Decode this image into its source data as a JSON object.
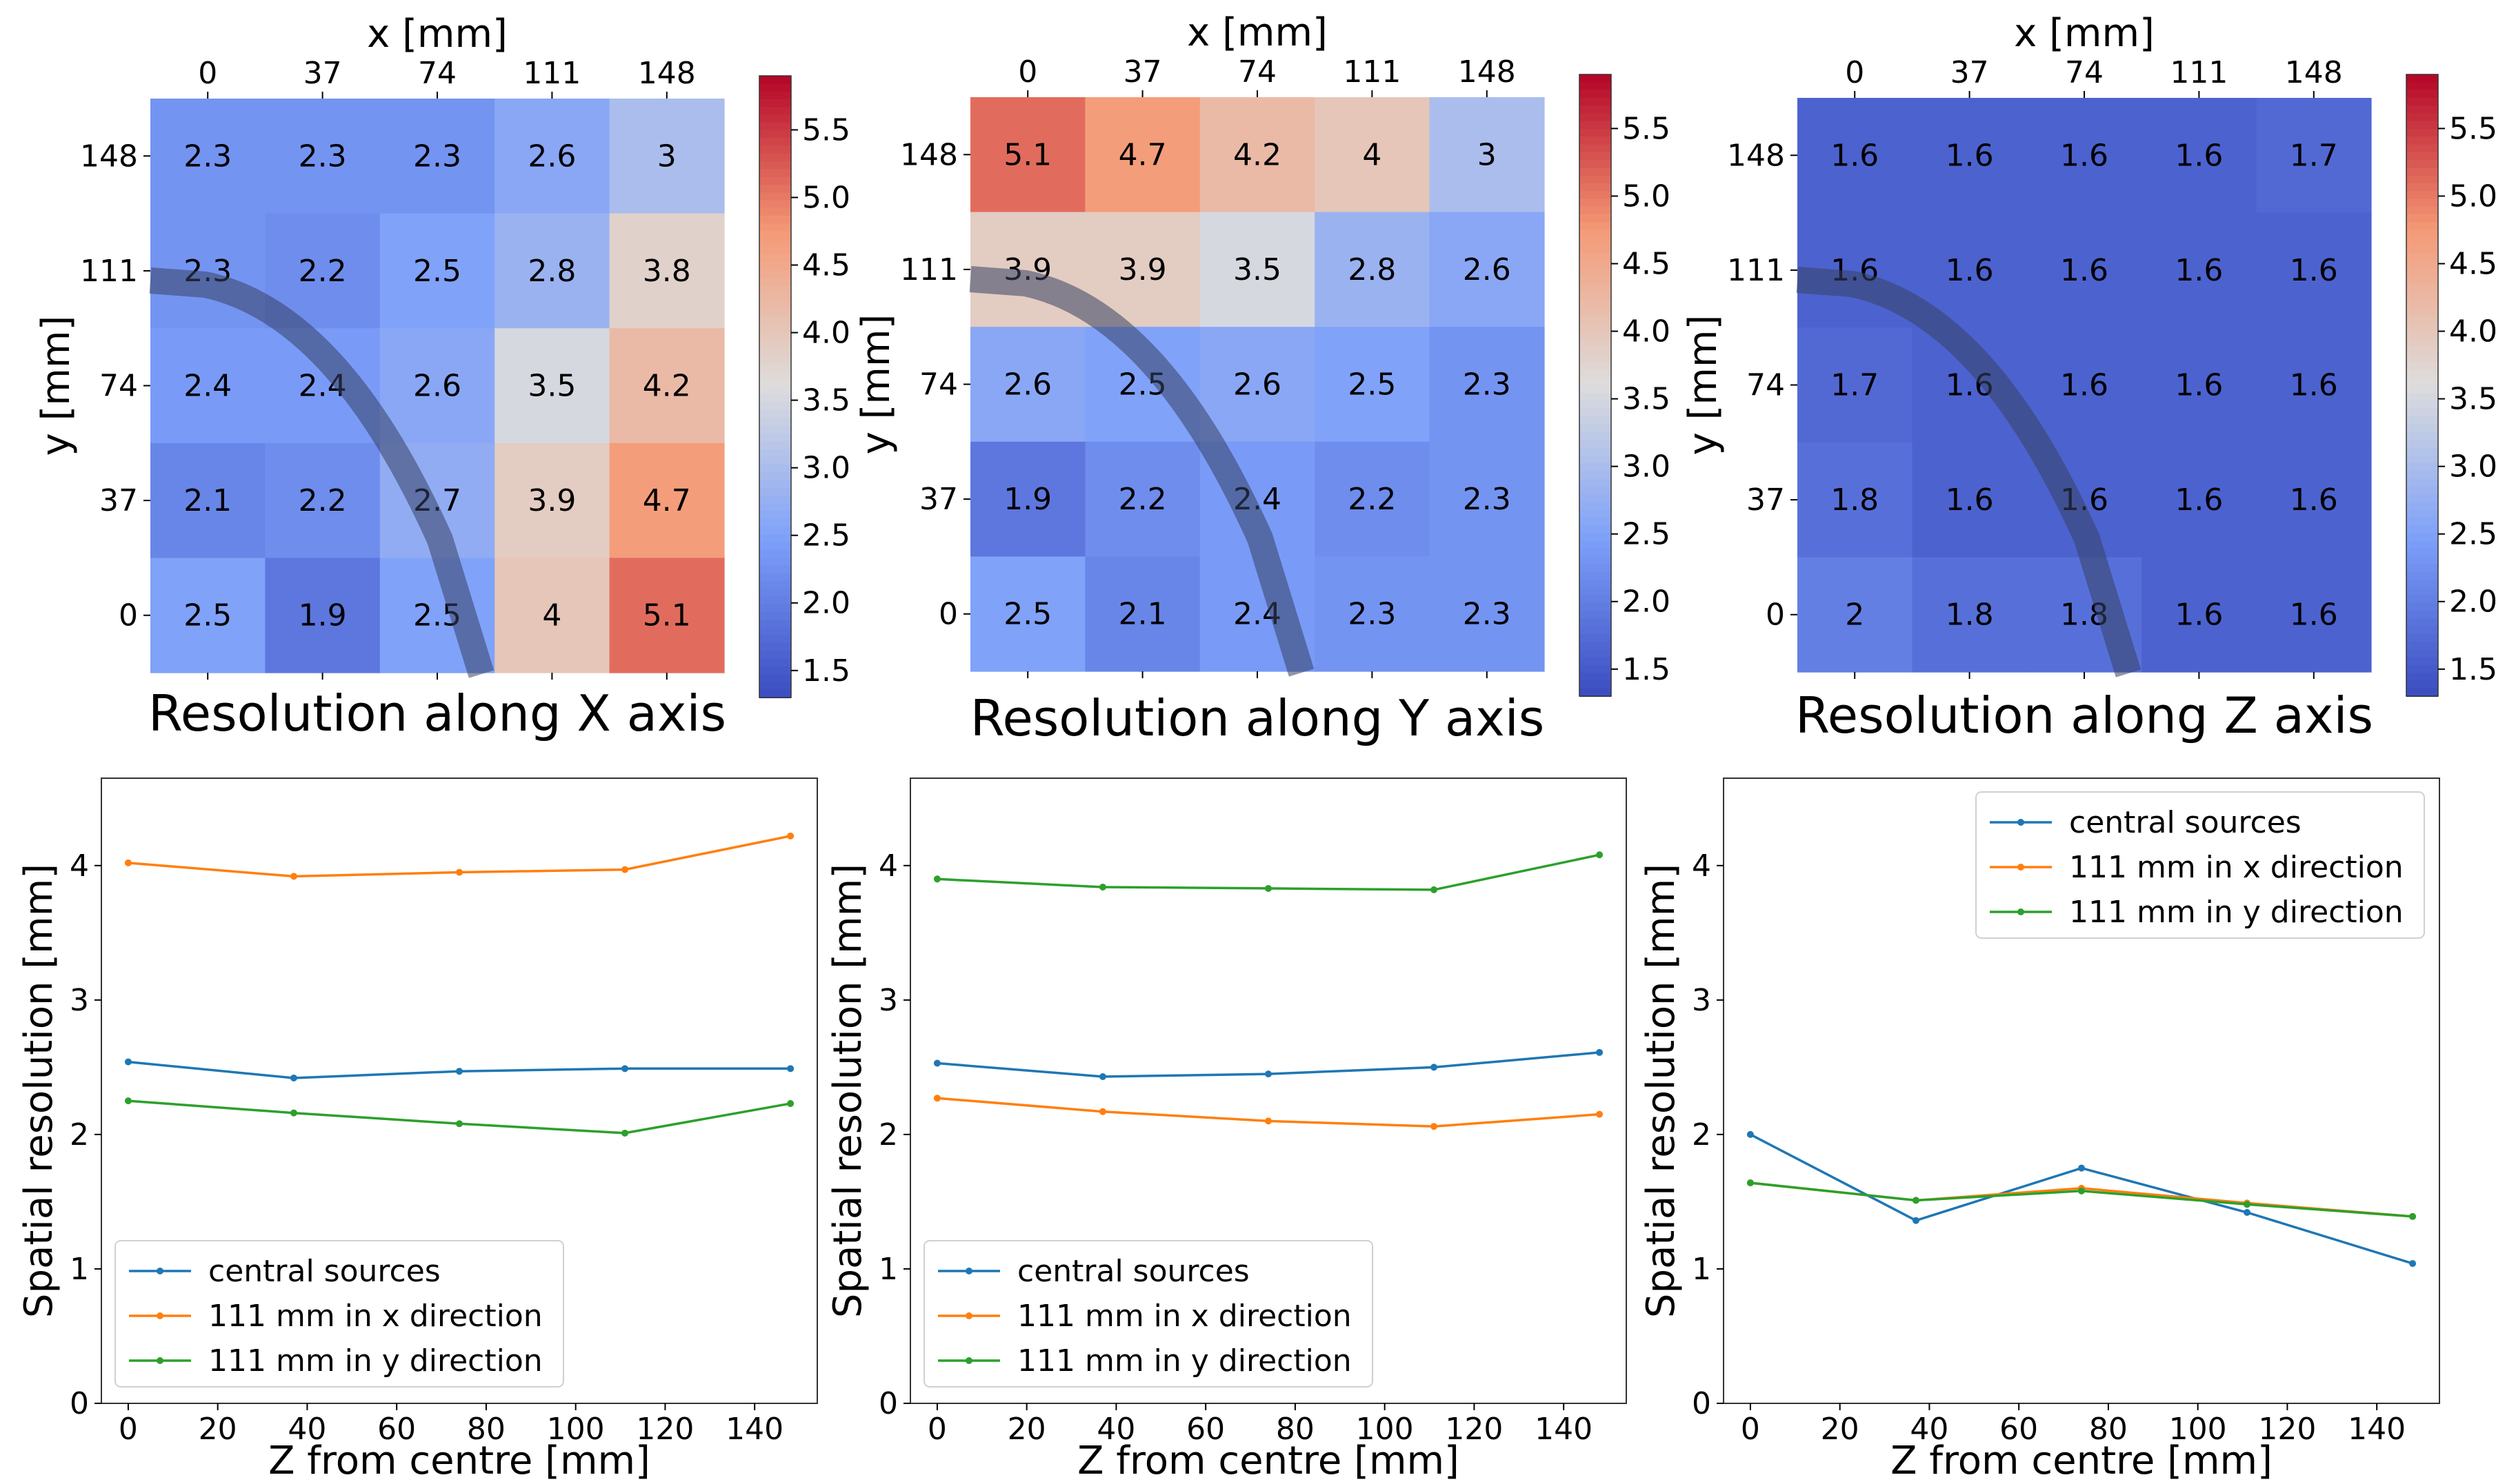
{
  "chart_data": [
    {
      "type": "heatmap",
      "title": "Resolution along X axis",
      "xlabel": "x [mm]",
      "ylabel": "y [mm]",
      "x_ticks": [
        "0",
        "37",
        "74",
        "111",
        "148"
      ],
      "y_ticks": [
        "148",
        "111",
        "74",
        "37",
        "0"
      ],
      "values": [
        [
          2.3,
          2.3,
          2.3,
          2.6,
          3.0
        ],
        [
          2.3,
          2.2,
          2.5,
          2.8,
          3.8
        ],
        [
          2.4,
          2.4,
          2.6,
          3.5,
          4.2
        ],
        [
          2.1,
          2.2,
          2.7,
          3.9,
          4.7
        ],
        [
          2.5,
          1.9,
          2.5,
          4.0,
          5.1
        ]
      ],
      "colorbar": {
        "min": 1.3,
        "max": 5.9,
        "ticks": [
          "1.5",
          "2.0",
          "2.5",
          "3.0",
          "3.5",
          "4.0",
          "4.5",
          "5.0",
          "5.5"
        ],
        "colormap": "coolwarm"
      }
    },
    {
      "type": "heatmap",
      "title": "Resolution along Y axis",
      "xlabel": "x [mm]",
      "ylabel": "y [mm]",
      "x_ticks": [
        "0",
        "37",
        "74",
        "111",
        "148"
      ],
      "y_ticks": [
        "148",
        "111",
        "74",
        "37",
        "0"
      ],
      "values": [
        [
          5.1,
          4.7,
          4.2,
          4.0,
          3.0
        ],
        [
          3.9,
          3.9,
          3.5,
          2.8,
          2.6
        ],
        [
          2.6,
          2.5,
          2.6,
          2.5,
          2.3
        ],
        [
          1.9,
          2.2,
          2.4,
          2.2,
          2.3
        ],
        [
          2.5,
          2.1,
          2.4,
          2.3,
          2.3
        ]
      ],
      "colorbar": {
        "min": 1.3,
        "max": 5.9,
        "ticks": [
          "1.5",
          "2.0",
          "2.5",
          "3.0",
          "3.5",
          "4.0",
          "4.5",
          "5.0",
          "5.5"
        ],
        "colormap": "coolwarm"
      }
    },
    {
      "type": "heatmap",
      "title": "Resolution along Z axis",
      "xlabel": "x [mm]",
      "ylabel": "y [mm]",
      "x_ticks": [
        "0",
        "37",
        "74",
        "111",
        "148"
      ],
      "y_ticks": [
        "148",
        "111",
        "74",
        "37",
        "0"
      ],
      "values": [
        [
          1.6,
          1.6,
          1.6,
          1.6,
          1.7
        ],
        [
          1.6,
          1.6,
          1.6,
          1.6,
          1.6
        ],
        [
          1.7,
          1.6,
          1.6,
          1.6,
          1.6
        ],
        [
          1.8,
          1.6,
          1.6,
          1.6,
          1.6
        ],
        [
          2.0,
          1.8,
          1.8,
          1.6,
          1.6
        ]
      ],
      "colorbar": {
        "min": 1.3,
        "max": 5.9,
        "ticks": [
          "1.5",
          "2.0",
          "2.5",
          "3.0",
          "3.5",
          "4.0",
          "4.5",
          "5.0",
          "5.5"
        ],
        "colormap": "coolwarm"
      }
    },
    {
      "type": "line",
      "xlabel": "Z from centre [mm]",
      "ylabel": "Spatial resolution [mm]",
      "xlim": [
        -6,
        154
      ],
      "ylim": [
        0,
        4.65
      ],
      "x_ticks": [
        0,
        20,
        40,
        60,
        80,
        100,
        120,
        140
      ],
      "y_ticks": [
        0,
        1,
        2,
        3,
        4
      ],
      "legend_loc": "lower-left",
      "x": [
        0,
        37,
        74,
        111,
        148
      ],
      "series": [
        {
          "name": "central sources",
          "color": "#1f77b4",
          "values": [
            2.54,
            2.42,
            2.47,
            2.49,
            2.49
          ]
        },
        {
          "name": "111 mm in x direction",
          "color": "#ff7f0e",
          "values": [
            4.02,
            3.92,
            3.95,
            3.97,
            4.22
          ]
        },
        {
          "name": "111 mm in y direction",
          "color": "#2ca02c",
          "values": [
            2.25,
            2.16,
            2.08,
            2.01,
            2.23
          ]
        }
      ]
    },
    {
      "type": "line",
      "xlabel": "Z from centre [mm]",
      "ylabel": "Spatial resolution [mm]",
      "xlim": [
        -6,
        154
      ],
      "ylim": [
        0,
        4.65
      ],
      "x_ticks": [
        0,
        20,
        40,
        60,
        80,
        100,
        120,
        140
      ],
      "y_ticks": [
        0,
        1,
        2,
        3,
        4
      ],
      "legend_loc": "lower-left",
      "x": [
        0,
        37,
        74,
        111,
        148
      ],
      "series": [
        {
          "name": "central sources",
          "color": "#1f77b4",
          "values": [
            2.53,
            2.43,
            2.45,
            2.5,
            2.61
          ]
        },
        {
          "name": "111 mm in x direction",
          "color": "#ff7f0e",
          "values": [
            2.27,
            2.17,
            2.1,
            2.06,
            2.15
          ]
        },
        {
          "name": "111 mm in y direction",
          "color": "#2ca02c",
          "values": [
            3.9,
            3.84,
            3.83,
            3.82,
            4.08
          ]
        }
      ]
    },
    {
      "type": "line",
      "xlabel": "Z from centre [mm]",
      "ylabel": "Spatial resolution [mm]",
      "xlim": [
        -6,
        154
      ],
      "ylim": [
        0,
        4.65
      ],
      "x_ticks": [
        0,
        20,
        40,
        60,
        80,
        100,
        120,
        140
      ],
      "y_ticks": [
        0,
        1,
        2,
        3,
        4
      ],
      "legend_loc": "top-right",
      "x": [
        0,
        37,
        74,
        111,
        148
      ],
      "series": [
        {
          "name": "central sources",
          "color": "#1f77b4",
          "values": [
            2.0,
            1.36,
            1.75,
            1.42,
            1.04
          ]
        },
        {
          "name": "111 mm in x direction",
          "color": "#ff7f0e",
          "values": [
            1.64,
            1.51,
            1.6,
            1.49,
            1.39
          ]
        },
        {
          "name": "111 mm in y direction",
          "color": "#2ca02c",
          "values": [
            1.64,
            1.51,
            1.58,
            1.48,
            1.39
          ]
        }
      ]
    }
  ]
}
